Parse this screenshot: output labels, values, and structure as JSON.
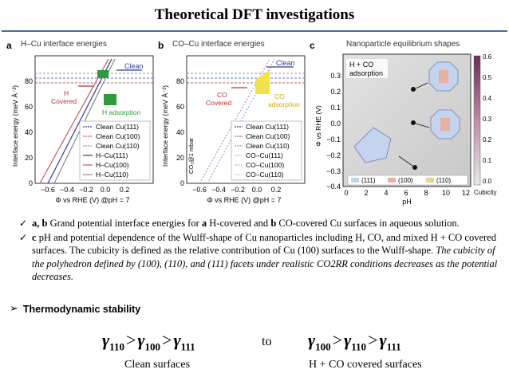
{
  "title": "Theoretical DFT investigations",
  "panels": {
    "a": {
      "letter": "a",
      "title": "H–Cu interface energies",
      "ylabel": "Interface energy (meV Å⁻²)",
      "xlabel": "Φ vs RHE (V) @pH = 7",
      "xticks": [
        "−0.6",
        "−0.4",
        "−0.2",
        "0.0",
        "0.2"
      ],
      "yticks": [
        "0",
        "20",
        "40",
        "60",
        "80"
      ],
      "ann_clean": "Clean",
      "ann_h": "H",
      "ann_h2": "Covered",
      "ann_hads": "H adsorption",
      "legend": [
        "Clean Cu(111)",
        "Clean Cu(100)",
        "Clean Cu(110)",
        "H–Cu(111)",
        "H–Cu(100)",
        "H–Cu(110)"
      ]
    },
    "b": {
      "letter": "b",
      "title": "CO–Cu interface energies",
      "ylabel": "Interface energy (meV Å⁻²)",
      "xlabel": "Φ vs RHE (V) @pH = 7",
      "side": "CO₂@1 mbar",
      "xticks": [
        "−0.6",
        "−0.4",
        "−0.2",
        "0.0",
        "0.2"
      ],
      "yticks": [
        "0",
        "20",
        "40",
        "60",
        "80"
      ],
      "ann_clean": "Clean",
      "ann_co": "CO",
      "ann_co2": "Covered",
      "ann_coads": "CO",
      "ann_coads2": "adsorption",
      "legend": [
        "Clean Cu(111)",
        "Clean Cu(100)",
        "Clean Cu(110)",
        "CO–Cu(111)",
        "CO–Cu(100)",
        "CO–Cu(110)"
      ]
    },
    "c": {
      "letter": "c",
      "title": "Nanoparticle equilibrium shapes",
      "ylabel": "Φ vs RHE (V)",
      "xlabel": "pH",
      "ann": "H + CO",
      "ann2": "adsorption",
      "xticks": [
        "0",
        "2",
        "4",
        "6",
        "8",
        "10",
        "12"
      ],
      "yticks": [
        "0.3",
        "0.2",
        "0.1",
        "0.0",
        "−0.1",
        "−0.2",
        "−0.3",
        "−0.4"
      ],
      "cb_ticks": [
        "0.6",
        "0.5",
        "0.4",
        "0.3",
        "0.2",
        "0.1",
        "0.0"
      ],
      "cb_label": "Cubicity",
      "legend": [
        "(111)",
        "(100)",
        "(110)"
      ]
    }
  },
  "bullets": [
    {
      "bold1": "a, b",
      "t1": " Grand potential interface energies for ",
      "bold2": "a",
      "t2": " H-covered and ",
      "bold3": "b",
      "t3": " CO-covered Cu surfaces in aqueous solution."
    },
    {
      "bold1": "c",
      "t1": " pH and potential dependence of the Wulff-shape of Cu nanoparticles including H, CO, and mixed H + CO covered surfaces. The cubicity is defined as the relative contribution of Cu (100) surfaces to the Wulff-shape. ",
      "italic": "The cubicity of the polyhedron defined by (100), (110), and (111) facets under realistic CO2RR conditions decreases as the potential decreases."
    }
  ],
  "thermo": "Thermodynamic stability",
  "gamma": "γ",
  "gt": ">",
  "ineq_left": [
    "110",
    "100",
    "111"
  ],
  "to": "to",
  "ineq_right": [
    "100",
    "110",
    "111"
  ],
  "cap_left": "Clean surfaces",
  "cap_right": "H + CO covered surfaces"
}
